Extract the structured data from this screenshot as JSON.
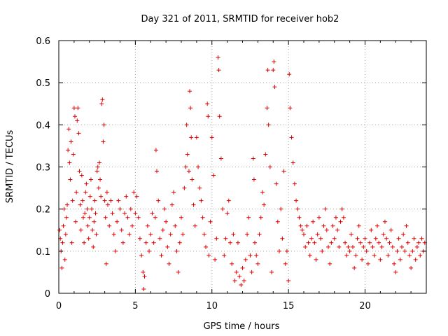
{
  "chart_data": {
    "type": "scatter",
    "title": "Day 321 of 2011, SRMTID for receiver hob2",
    "xlabel": "GPS time / hours",
    "ylabel": "SRMTID / TECUs",
    "xlim": [
      0,
      24
    ],
    "ylim": [
      0,
      0.6
    ],
    "xticks": [
      0,
      5,
      10,
      15,
      20
    ],
    "xtick_labels": [
      "0",
      "5",
      "10",
      "15",
      "20"
    ],
    "yticks": [
      0,
      0.1,
      0.2,
      0.3,
      0.4,
      0.5,
      0.6
    ],
    "ytick_labels": [
      "0",
      "0.1",
      "0.2",
      "0.3",
      "0.4",
      "0.5",
      "0.6"
    ],
    "grid": true,
    "marker": "plus",
    "marker_color": "#e00000",
    "series": [
      {
        "name": "SRMTID",
        "note": "dense ~1700-point scatter; representative subset transcribed",
        "points": [
          [
            0.05,
            0.15
          ],
          [
            0.1,
            0.13
          ],
          [
            0.15,
            0.1
          ],
          [
            0.2,
            0.06
          ],
          [
            0.25,
            0.12
          ],
          [
            0.3,
            0.16
          ],
          [
            0.35,
            0.2
          ],
          [
            0.4,
            0.08
          ],
          [
            0.45,
            0.14
          ],
          [
            0.5,
            0.18
          ],
          [
            0.55,
            0.21
          ],
          [
            0.6,
            0.34
          ],
          [
            0.65,
            0.39
          ],
          [
            0.7,
            0.31
          ],
          [
            0.75,
            0.27
          ],
          [
            0.8,
            0.36
          ],
          [
            0.85,
            0.12
          ],
          [
            0.9,
            0.22
          ],
          [
            0.95,
            0.33
          ],
          [
            1.0,
            0.44
          ],
          [
            1.05,
            0.42
          ],
          [
            1.1,
            0.17
          ],
          [
            1.15,
            0.24
          ],
          [
            1.2,
            0.41
          ],
          [
            1.25,
            0.44
          ],
          [
            1.3,
            0.38
          ],
          [
            1.35,
            0.29
          ],
          [
            1.4,
            0.21
          ],
          [
            1.45,
            0.15
          ],
          [
            1.5,
            0.28
          ],
          [
            1.55,
            0.22
          ],
          [
            1.6,
            0.18
          ],
          [
            1.65,
            0.12
          ],
          [
            1.7,
            0.19
          ],
          [
            1.75,
            0.24
          ],
          [
            1.8,
            0.26
          ],
          [
            1.85,
            0.2
          ],
          [
            1.9,
            0.16
          ],
          [
            1.95,
            0.13
          ],
          [
            2.0,
            0.18
          ],
          [
            2.05,
            0.23
          ],
          [
            2.1,
            0.27
          ],
          [
            2.15,
            0.2
          ],
          [
            2.2,
            0.15
          ],
          [
            2.25,
            0.11
          ],
          [
            2.3,
            0.17
          ],
          [
            2.35,
            0.22
          ],
          [
            2.4,
            0.19
          ],
          [
            2.45,
            0.14
          ],
          [
            2.5,
            0.29
          ],
          [
            2.55,
            0.3
          ],
          [
            2.6,
            0.25
          ],
          [
            2.65,
            0.31
          ],
          [
            2.7,
            0.27
          ],
          [
            2.75,
            0.23
          ],
          [
            2.8,
            0.45
          ],
          [
            2.85,
            0.46
          ],
          [
            2.9,
            0.36
          ],
          [
            2.95,
            0.4
          ],
          [
            3.0,
            0.22
          ],
          [
            3.05,
            0.18
          ],
          [
            3.1,
            0.07
          ],
          [
            3.15,
            0.24
          ],
          [
            3.2,
            0.21
          ],
          [
            3.3,
            0.16
          ],
          [
            3.4,
            0.22
          ],
          [
            3.5,
            0.19
          ],
          [
            3.6,
            0.14
          ],
          [
            3.7,
            0.1
          ],
          [
            3.8,
            0.17
          ],
          [
            3.9,
            0.22
          ],
          [
            4.0,
            0.2
          ],
          [
            4.1,
            0.15
          ],
          [
            4.2,
            0.12
          ],
          [
            4.3,
            0.19
          ],
          [
            4.4,
            0.23
          ],
          [
            4.5,
            0.18
          ],
          [
            4.6,
            0.14
          ],
          [
            4.7,
            0.2
          ],
          [
            4.8,
            0.16
          ],
          [
            4.9,
            0.24
          ],
          [
            5.0,
            0.19
          ],
          [
            5.1,
            0.23
          ],
          [
            5.2,
            0.18
          ],
          [
            5.3,
            0.13
          ],
          [
            5.4,
            0.09
          ],
          [
            5.5,
            0.05
          ],
          [
            5.55,
            0.01
          ],
          [
            5.6,
            0.04
          ],
          [
            5.7,
            0.12
          ],
          [
            5.8,
            0.16
          ],
          [
            5.9,
            0.1
          ],
          [
            6.0,
            0.14
          ],
          [
            6.1,
            0.19
          ],
          [
            6.2,
            0.12
          ],
          [
            6.3,
            0.18
          ],
          [
            6.35,
            0.34
          ],
          [
            6.4,
            0.29
          ],
          [
            6.5,
            0.22
          ],
          [
            6.6,
            0.13
          ],
          [
            6.7,
            0.09
          ],
          [
            6.8,
            0.15
          ],
          [
            6.9,
            0.2
          ],
          [
            7.0,
            0.17
          ],
          [
            7.1,
            0.11
          ],
          [
            7.2,
            0.07
          ],
          [
            7.3,
            0.14
          ],
          [
            7.4,
            0.21
          ],
          [
            7.5,
            0.24
          ],
          [
            7.6,
            0.16
          ],
          [
            7.7,
            0.1
          ],
          [
            7.8,
            0.05
          ],
          [
            7.9,
            0.12
          ],
          [
            8.0,
            0.18
          ],
          [
            8.1,
            0.14
          ],
          [
            8.2,
            0.25
          ],
          [
            8.3,
            0.3
          ],
          [
            8.35,
            0.4
          ],
          [
            8.4,
            0.33
          ],
          [
            8.5,
            0.29
          ],
          [
            8.55,
            0.48
          ],
          [
            8.6,
            0.44
          ],
          [
            8.65,
            0.37
          ],
          [
            8.7,
            0.27
          ],
          [
            8.8,
            0.21
          ],
          [
            8.9,
            0.16
          ],
          [
            9.0,
            0.37
          ],
          [
            9.1,
            0.3
          ],
          [
            9.2,
            0.25
          ],
          [
            9.3,
            0.22
          ],
          [
            9.4,
            0.18
          ],
          [
            9.5,
            0.14
          ],
          [
            9.6,
            0.11
          ],
          [
            9.7,
            0.45
          ],
          [
            9.75,
            0.42
          ],
          [
            9.8,
            0.09
          ],
          [
            9.9,
            0.17
          ],
          [
            10.0,
            0.37
          ],
          [
            10.1,
            0.28
          ],
          [
            10.2,
            0.08
          ],
          [
            10.3,
            0.13
          ],
          [
            10.4,
            0.56
          ],
          [
            10.45,
            0.53
          ],
          [
            10.5,
            0.42
          ],
          [
            10.6,
            0.32
          ],
          [
            10.7,
            0.2
          ],
          [
            10.8,
            0.09
          ],
          [
            10.9,
            0.13
          ],
          [
            11.0,
            0.19
          ],
          [
            11.1,
            0.22
          ],
          [
            11.2,
            0.12
          ],
          [
            11.3,
            0.07
          ],
          [
            11.4,
            0.14
          ],
          [
            11.5,
            0.03
          ],
          [
            11.6,
            0.05
          ],
          [
            11.7,
            0.12
          ],
          [
            11.8,
            0.04
          ],
          [
            11.9,
            0.02
          ],
          [
            12.0,
            0.06
          ],
          [
            12.1,
            0.03
          ],
          [
            12.2,
            0.08
          ],
          [
            12.3,
            0.14
          ],
          [
            12.4,
            0.18
          ],
          [
            12.5,
            0.09
          ],
          [
            12.6,
            0.05
          ],
          [
            12.7,
            0.32
          ],
          [
            12.75,
            0.27
          ],
          [
            12.8,
            0.12
          ],
          [
            12.9,
            0.09
          ],
          [
            13.0,
            0.07
          ],
          [
            13.1,
            0.14
          ],
          [
            13.2,
            0.18
          ],
          [
            13.3,
            0.24
          ],
          [
            13.4,
            0.21
          ],
          [
            13.5,
            0.33
          ],
          [
            13.6,
            0.44
          ],
          [
            13.65,
            0.53
          ],
          [
            13.7,
            0.4
          ],
          [
            13.8,
            0.3
          ],
          [
            13.9,
            0.05
          ],
          [
            14.0,
            0.53
          ],
          [
            14.05,
            0.55
          ],
          [
            14.1,
            0.49
          ],
          [
            14.2,
            0.26
          ],
          [
            14.3,
            0.17
          ],
          [
            14.4,
            0.1
          ],
          [
            14.5,
            0.2
          ],
          [
            14.6,
            0.13
          ],
          [
            14.7,
            0.29
          ],
          [
            14.8,
            0.07
          ],
          [
            14.9,
            0.1
          ],
          [
            15.0,
            0.03
          ],
          [
            15.05,
            0.52
          ],
          [
            15.1,
            0.44
          ],
          [
            15.2,
            0.37
          ],
          [
            15.3,
            0.31
          ],
          [
            15.4,
            0.26
          ],
          [
            15.5,
            0.22
          ],
          [
            15.6,
            0.2
          ],
          [
            15.7,
            0.18
          ],
          [
            15.8,
            0.16
          ],
          [
            15.9,
            0.15
          ],
          [
            16.0,
            0.14
          ],
          [
            16.1,
            0.11
          ],
          [
            16.2,
            0.16
          ],
          [
            16.3,
            0.12
          ],
          [
            16.4,
            0.09
          ],
          [
            16.5,
            0.13
          ],
          [
            16.6,
            0.17
          ],
          [
            16.7,
            0.12
          ],
          [
            16.8,
            0.08
          ],
          [
            16.9,
            0.14
          ],
          [
            17.0,
            0.18
          ],
          [
            17.1,
            0.13
          ],
          [
            17.2,
            0.1
          ],
          [
            17.3,
            0.16
          ],
          [
            17.4,
            0.2
          ],
          [
            17.5,
            0.15
          ],
          [
            17.6,
            0.11
          ],
          [
            17.7,
            0.07
          ],
          [
            17.8,
            0.12
          ],
          [
            17.9,
            0.16
          ],
          [
            18.0,
            0.13
          ],
          [
            18.1,
            0.18
          ],
          [
            18.2,
            0.15
          ],
          [
            18.3,
            0.11
          ],
          [
            18.4,
            0.17
          ],
          [
            18.5,
            0.2
          ],
          [
            18.6,
            0.18
          ],
          [
            18.7,
            0.12
          ],
          [
            18.8,
            0.09
          ],
          [
            18.9,
            0.11
          ],
          [
            19.0,
            0.1
          ],
          [
            19.1,
            0.14
          ],
          [
            19.2,
            0.11
          ],
          [
            19.3,
            0.06
          ],
          [
            19.4,
            0.09
          ],
          [
            19.5,
            0.13
          ],
          [
            19.6,
            0.16
          ],
          [
            19.7,
            0.12
          ],
          [
            19.8,
            0.08
          ],
          [
            19.9,
            0.11
          ],
          [
            20.0,
            0.13
          ],
          [
            20.1,
            0.1
          ],
          [
            20.2,
            0.07
          ],
          [
            20.3,
            0.12
          ],
          [
            20.4,
            0.15
          ],
          [
            20.5,
            0.11
          ],
          [
            20.6,
            0.09
          ],
          [
            20.7,
            0.13
          ],
          [
            20.8,
            0.16
          ],
          [
            20.9,
            0.12
          ],
          [
            21.0,
            0.08
          ],
          [
            21.1,
            0.11
          ],
          [
            21.2,
            0.14
          ],
          [
            21.3,
            0.17
          ],
          [
            21.4,
            0.13
          ],
          [
            21.5,
            0.09
          ],
          [
            21.6,
            0.12
          ],
          [
            21.7,
            0.15
          ],
          [
            21.8,
            0.11
          ],
          [
            21.9,
            0.07
          ],
          [
            22.0,
            0.05
          ],
          [
            22.1,
            0.1
          ],
          [
            22.2,
            0.13
          ],
          [
            22.3,
            0.08
          ],
          [
            22.4,
            0.11
          ],
          [
            22.5,
            0.14
          ],
          [
            22.6,
            0.1
          ],
          [
            22.7,
            0.16
          ],
          [
            22.8,
            0.12
          ],
          [
            22.9,
            0.09
          ],
          [
            23.0,
            0.06
          ],
          [
            23.1,
            0.1
          ],
          [
            23.2,
            0.13
          ],
          [
            23.3,
            0.08
          ],
          [
            23.4,
            0.11
          ],
          [
            23.5,
            0.12
          ],
          [
            23.6,
            0.09
          ],
          [
            23.7,
            0.13
          ],
          [
            23.8,
            0.1
          ],
          [
            23.9,
            0.12
          ]
        ]
      }
    ]
  }
}
